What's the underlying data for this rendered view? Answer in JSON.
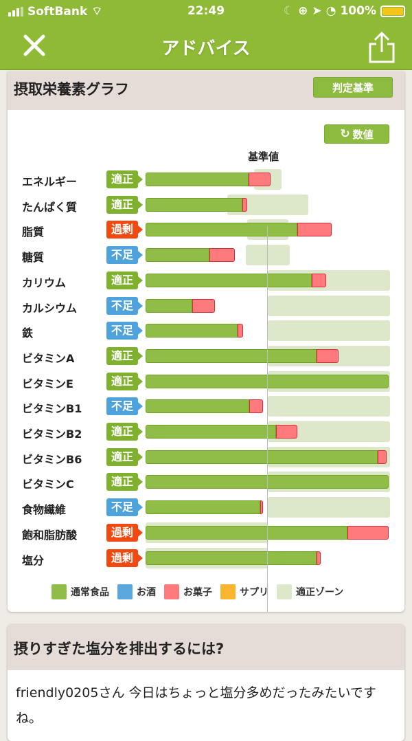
{
  "status_bar": {
    "carrier": "SoftBank",
    "time": "22:49",
    "battery": "100%"
  },
  "nav": {
    "title": "アドバイス",
    "close_icon": "close-icon",
    "share_icon": "share-icon"
  },
  "graph_card": {
    "title": "摂取栄養素グラフ",
    "criteria_button": "判定基準",
    "values_button": "数値",
    "baseline_label": "基準値",
    "colors": {
      "normal_food": "#8fbd48",
      "alcohol": "#5aa7de",
      "snack": "#ff7a7c",
      "supplement": "#f9b52d",
      "zone": "#dce8c9",
      "badge_ok": "#7fb12f",
      "badge_over": "#f04a12",
      "badge_under": "#4fa3dc"
    },
    "legend": [
      {
        "label": "通常食品",
        "color": "#8fbd48"
      },
      {
        "label": "お酒",
        "color": "#5aa7de"
      },
      {
        "label": "お菓子",
        "color": "#ff7a7c"
      },
      {
        "label": "サプリ",
        "color": "#f9b52d"
      },
      {
        "label": "適正ゾーン",
        "color": "#dce8c9"
      }
    ]
  },
  "chart_data": {
    "type": "bar",
    "orientation": "horizontal-stacked",
    "unit": "% of 基準値",
    "xlim": [
      0,
      200
    ],
    "reference_line": 100,
    "categories": [
      "エネルギー",
      "たんぱく質",
      "脂質",
      "糖質",
      "カリウム",
      "カルシウム",
      "鉄",
      "ビタミンA",
      "ビタミンE",
      "ビタミンB1",
      "ビタミンB2",
      "ビタミンB6",
      "ビタミンC",
      "食物繊維",
      "飽和脂肪酸",
      "塩分"
    ],
    "status": [
      "適正",
      "適正",
      "過剰",
      "不足",
      "適正",
      "不足",
      "不足",
      "適正",
      "適正",
      "不足",
      "適正",
      "適正",
      "適正",
      "不足",
      "過剰",
      "過剰"
    ],
    "series": [
      {
        "name": "通常食品",
        "values": [
          84,
          79,
          124,
          52,
          136,
          38,
          75,
          140,
          199,
          85,
          107,
          190,
          199,
          94,
          165,
          140
        ]
      },
      {
        "name": "お菓子",
        "values": [
          18,
          4,
          28,
          21,
          12,
          19,
          5,
          18,
          0,
          11,
          17,
          7,
          0,
          2,
          34,
          3
        ]
      }
    ],
    "zones": [
      [
        89,
        111
      ],
      [
        67,
        133
      ],
      [
        83,
        117
      ],
      [
        82,
        118
      ],
      [
        100,
        200
      ],
      [
        100,
        200
      ],
      [
        100,
        200
      ],
      [
        100,
        200
      ],
      [
        100,
        200
      ],
      [
        100,
        200
      ],
      [
        100,
        200
      ],
      [
        100,
        200
      ],
      [
        100,
        200
      ],
      [
        100,
        200
      ],
      [
        0,
        100
      ],
      [
        0,
        100
      ]
    ]
  },
  "advice_card": {
    "title": "摂りすぎた塩分を排出するには?",
    "body": "friendly0205さん 今日はちょっと塩分多めだったみたいですね。"
  }
}
